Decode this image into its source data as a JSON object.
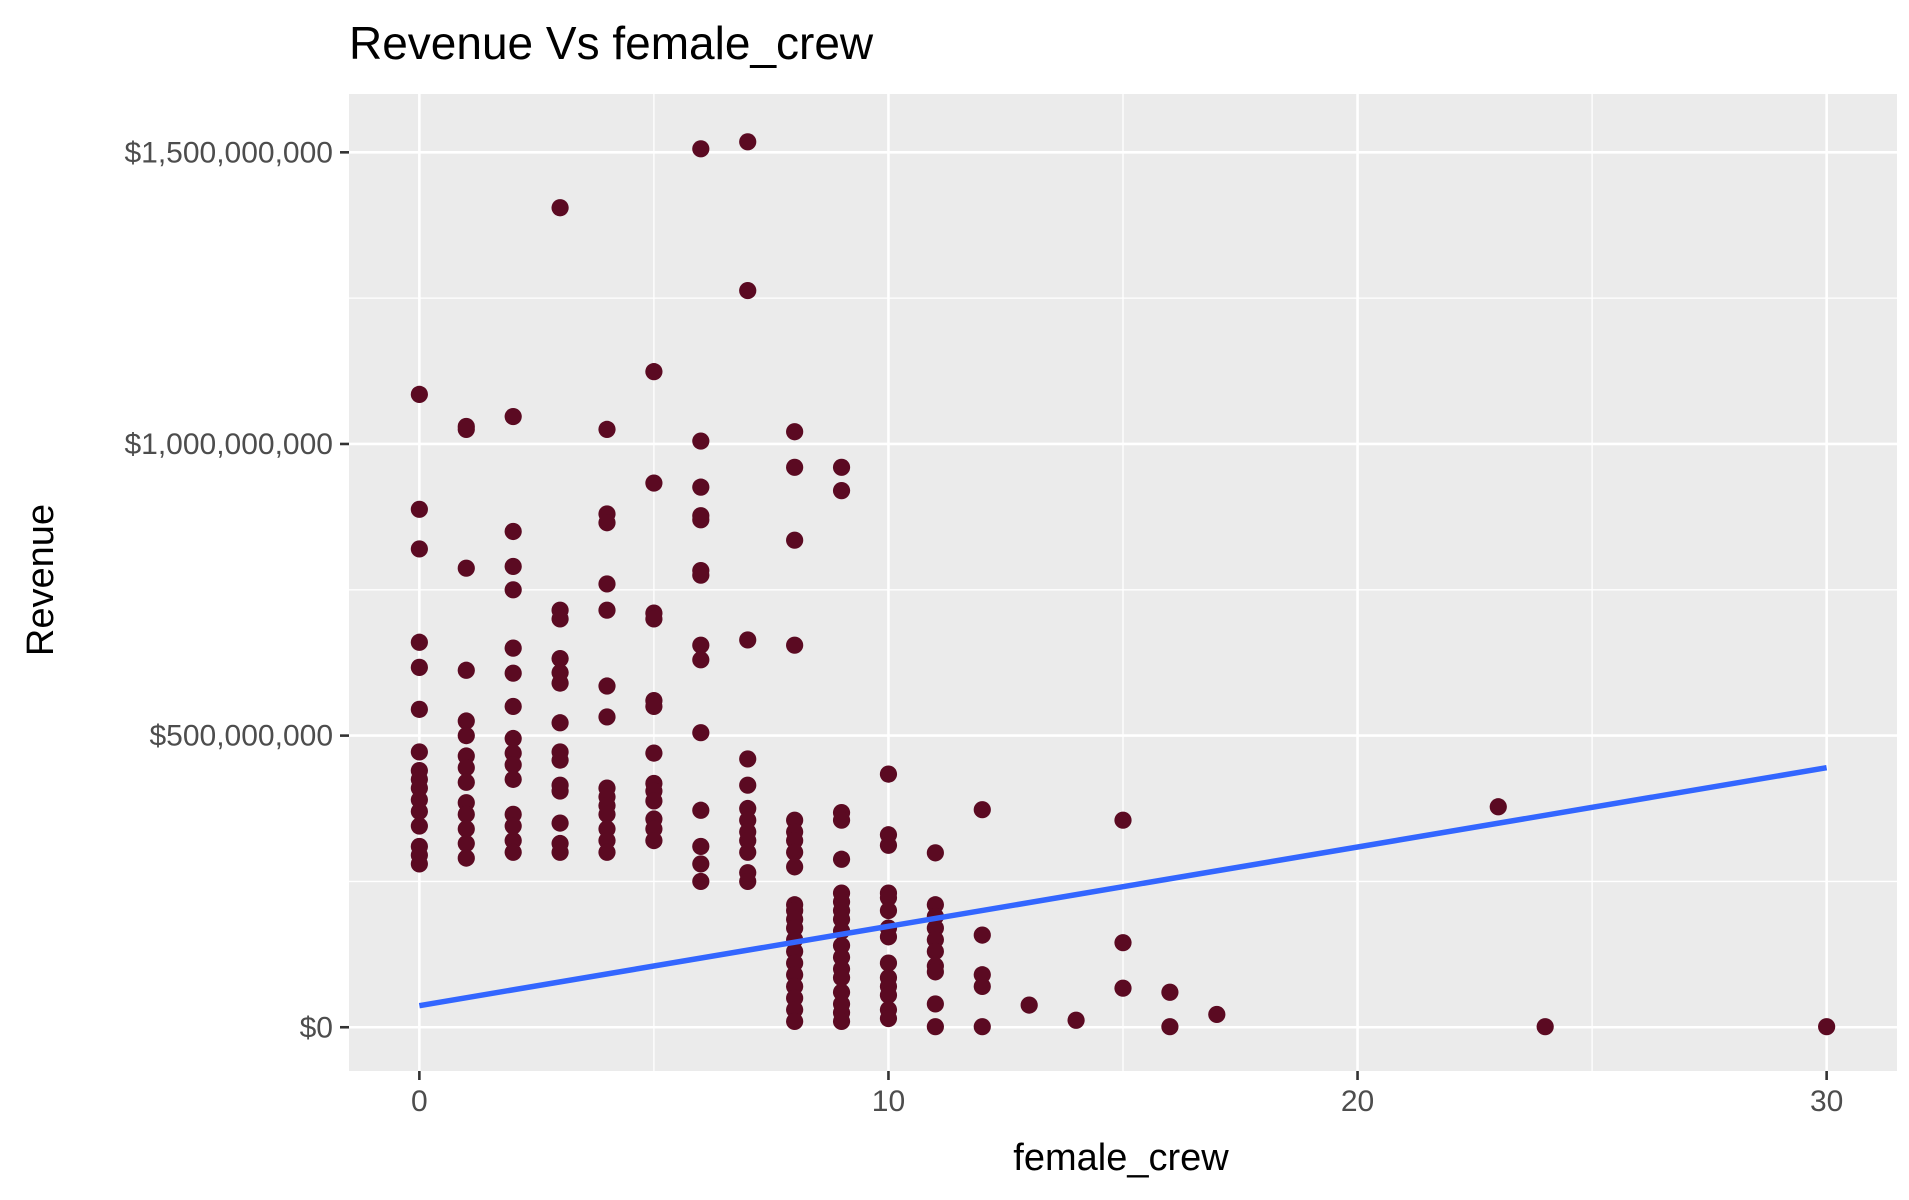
{
  "chart_data": {
    "type": "scatter",
    "title": "Revenue Vs female_crew",
    "xlabel": "female_crew",
    "ylabel": "Revenue",
    "xlim": [
      -1.5,
      31.5
    ],
    "ylim": [
      -75000000,
      1600000000
    ],
    "x_ticks": [
      0,
      10,
      20,
      30
    ],
    "x_tick_labels": [
      "0",
      "10",
      "20",
      "30"
    ],
    "x_minor_ticks": [
      5,
      15,
      25
    ],
    "y_ticks": [
      0,
      500000000,
      1000000000,
      1500000000
    ],
    "y_tick_labels": [
      "$0",
      "$500,000,000",
      "$1,000,000,000",
      "$1,500,000,000"
    ],
    "y_minor_ticks": [
      250000000,
      750000000,
      1250000000
    ],
    "grid": true,
    "colors": {
      "panel": "#ebebeb",
      "grid": "#ffffff",
      "point": "#5b0a22",
      "trend": "#3366ff",
      "tick": "#333333"
    },
    "points": [
      [
        0,
        1085000000
      ],
      [
        0,
        888000000
      ],
      [
        0,
        820000000
      ],
      [
        0,
        660000000
      ],
      [
        0,
        617000000
      ],
      [
        0,
        545000000
      ],
      [
        0,
        472000000
      ],
      [
        0,
        440000000
      ],
      [
        0,
        425000000
      ],
      [
        0,
        410000000
      ],
      [
        0,
        390000000
      ],
      [
        0,
        370000000
      ],
      [
        0,
        345000000
      ],
      [
        0,
        310000000
      ],
      [
        0,
        295000000
      ],
      [
        0,
        280000000
      ],
      [
        1,
        1030000000
      ],
      [
        1,
        1025000000
      ],
      [
        1,
        787000000
      ],
      [
        1,
        612000000
      ],
      [
        1,
        525000000
      ],
      [
        1,
        500000000
      ],
      [
        1,
        465000000
      ],
      [
        1,
        445000000
      ],
      [
        1,
        420000000
      ],
      [
        1,
        385000000
      ],
      [
        1,
        365000000
      ],
      [
        1,
        340000000
      ],
      [
        1,
        315000000
      ],
      [
        1,
        290000000
      ],
      [
        2,
        1047000000
      ],
      [
        2,
        850000000
      ],
      [
        2,
        790000000
      ],
      [
        2,
        750000000
      ],
      [
        2,
        650000000
      ],
      [
        2,
        607000000
      ],
      [
        2,
        550000000
      ],
      [
        2,
        495000000
      ],
      [
        2,
        470000000
      ],
      [
        2,
        450000000
      ],
      [
        2,
        425000000
      ],
      [
        2,
        365000000
      ],
      [
        2,
        345000000
      ],
      [
        2,
        320000000
      ],
      [
        2,
        300000000
      ],
      [
        3,
        1405000000
      ],
      [
        3,
        715000000
      ],
      [
        3,
        700000000
      ],
      [
        3,
        632000000
      ],
      [
        3,
        608000000
      ],
      [
        3,
        590000000
      ],
      [
        3,
        522000000
      ],
      [
        3,
        472000000
      ],
      [
        3,
        458000000
      ],
      [
        3,
        415000000
      ],
      [
        3,
        405000000
      ],
      [
        3,
        350000000
      ],
      [
        3,
        315000000
      ],
      [
        3,
        300000000
      ],
      [
        4,
        1025000000
      ],
      [
        4,
        880000000
      ],
      [
        4,
        865000000
      ],
      [
        4,
        760000000
      ],
      [
        4,
        715000000
      ],
      [
        4,
        585000000
      ],
      [
        4,
        532000000
      ],
      [
        4,
        410000000
      ],
      [
        4,
        395000000
      ],
      [
        4,
        380000000
      ],
      [
        4,
        365000000
      ],
      [
        4,
        340000000
      ],
      [
        4,
        320000000
      ],
      [
        4,
        300000000
      ],
      [
        5,
        1124000000
      ],
      [
        5,
        933000000
      ],
      [
        5,
        710000000
      ],
      [
        5,
        700000000
      ],
      [
        5,
        560000000
      ],
      [
        5,
        550000000
      ],
      [
        5,
        470000000
      ],
      [
        5,
        418000000
      ],
      [
        5,
        405000000
      ],
      [
        5,
        388000000
      ],
      [
        5,
        357000000
      ],
      [
        5,
        340000000
      ],
      [
        5,
        320000000
      ],
      [
        6,
        1506000000
      ],
      [
        6,
        1005000000
      ],
      [
        6,
        926000000
      ],
      [
        6,
        877000000
      ],
      [
        6,
        870000000
      ],
      [
        6,
        783000000
      ],
      [
        6,
        775000000
      ],
      [
        6,
        655000000
      ],
      [
        6,
        630000000
      ],
      [
        6,
        505000000
      ],
      [
        6,
        372000000
      ],
      [
        6,
        310000000
      ],
      [
        6,
        280000000
      ],
      [
        6,
        250000000
      ],
      [
        7,
        1518000000
      ],
      [
        7,
        1263000000
      ],
      [
        7,
        664000000
      ],
      [
        7,
        460000000
      ],
      [
        7,
        415000000
      ],
      [
        7,
        375000000
      ],
      [
        7,
        355000000
      ],
      [
        7,
        335000000
      ],
      [
        7,
        320000000
      ],
      [
        7,
        300000000
      ],
      [
        7,
        265000000
      ],
      [
        7,
        250000000
      ],
      [
        8,
        1021000000
      ],
      [
        8,
        960000000
      ],
      [
        8,
        835000000
      ],
      [
        8,
        655000000
      ],
      [
        8,
        355000000
      ],
      [
        8,
        335000000
      ],
      [
        8,
        320000000
      ],
      [
        8,
        300000000
      ],
      [
        8,
        275000000
      ],
      [
        8,
        210000000
      ],
      [
        8,
        200000000
      ],
      [
        8,
        185000000
      ],
      [
        8,
        170000000
      ],
      [
        8,
        150000000
      ],
      [
        8,
        130000000
      ],
      [
        8,
        110000000
      ],
      [
        8,
        90000000
      ],
      [
        8,
        70000000
      ],
      [
        8,
        50000000
      ],
      [
        8,
        30000000
      ],
      [
        8,
        10000000
      ],
      [
        9,
        960000000
      ],
      [
        9,
        920000000
      ],
      [
        9,
        368000000
      ],
      [
        9,
        355000000
      ],
      [
        9,
        288000000
      ],
      [
        9,
        230000000
      ],
      [
        9,
        215000000
      ],
      [
        9,
        200000000
      ],
      [
        9,
        185000000
      ],
      [
        9,
        165000000
      ],
      [
        9,
        140000000
      ],
      [
        9,
        120000000
      ],
      [
        9,
        100000000
      ],
      [
        9,
        85000000
      ],
      [
        9,
        60000000
      ],
      [
        9,
        40000000
      ],
      [
        9,
        25000000
      ],
      [
        9,
        10000000
      ],
      [
        10,
        434000000
      ],
      [
        10,
        330000000
      ],
      [
        10,
        312000000
      ],
      [
        10,
        230000000
      ],
      [
        10,
        222000000
      ],
      [
        10,
        200000000
      ],
      [
        10,
        170000000
      ],
      [
        10,
        155000000
      ],
      [
        10,
        110000000
      ],
      [
        10,
        85000000
      ],
      [
        10,
        70000000
      ],
      [
        10,
        55000000
      ],
      [
        10,
        30000000
      ],
      [
        10,
        15000000
      ],
      [
        11,
        299000000
      ],
      [
        11,
        210000000
      ],
      [
        11,
        190000000
      ],
      [
        11,
        170000000
      ],
      [
        11,
        150000000
      ],
      [
        11,
        130000000
      ],
      [
        11,
        105000000
      ],
      [
        11,
        95000000
      ],
      [
        11,
        40000000
      ],
      [
        11,
        1000000
      ],
      [
        12,
        373000000
      ],
      [
        12,
        158000000
      ],
      [
        12,
        90000000
      ],
      [
        12,
        70000000
      ],
      [
        12,
        1000000
      ],
      [
        13,
        38000000
      ],
      [
        14,
        12000000
      ],
      [
        15,
        355000000
      ],
      [
        15,
        145000000
      ],
      [
        15,
        67000000
      ],
      [
        16,
        60000000
      ],
      [
        16,
        1000000
      ],
      [
        17,
        22000000
      ],
      [
        23,
        378000000
      ],
      [
        24,
        1000000
      ],
      [
        30,
        1000000
      ]
    ],
    "trend_line": {
      "x": [
        0,
        30
      ],
      "y": [
        37000000,
        445000000
      ]
    }
  }
}
